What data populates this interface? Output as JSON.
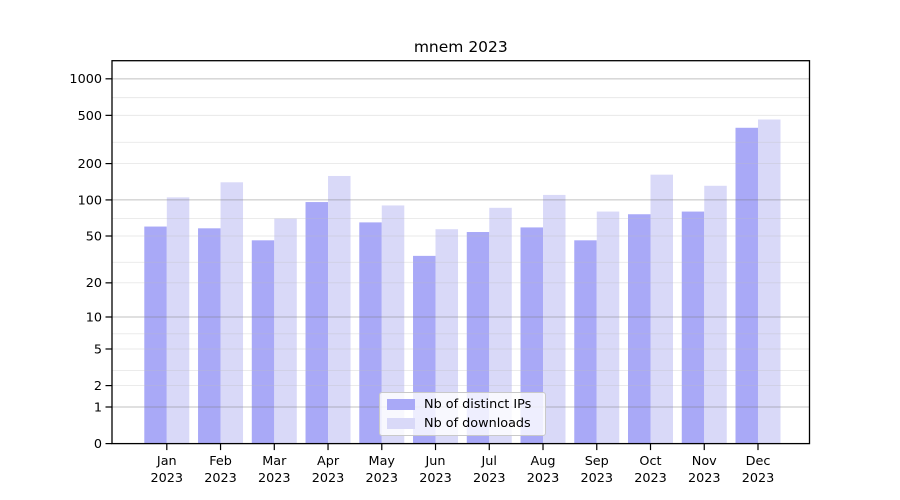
{
  "title": "mnem 2023",
  "chart_data": {
    "type": "bar",
    "title": "mnem 2023",
    "xlabel": "",
    "ylabel": "",
    "yscale": "log1p (symlog-like; linear 0-1, logarithmic above)",
    "ylim": [
      0,
      1400
    ],
    "grid": true,
    "legend_position": "lower center",
    "categories": [
      "Jan 2023",
      "Feb 2023",
      "Mar 2023",
      "Apr 2023",
      "May 2023",
      "Jun 2023",
      "Jul 2023",
      "Aug 2023",
      "Sep 2023",
      "Oct 2023",
      "Nov 2023",
      "Dec 2023"
    ],
    "series": [
      {
        "name": "Nb of distinct IPs",
        "key": "distinct-ips",
        "color": "#a9a9f7",
        "values": [
          60,
          58,
          46,
          96,
          65,
          34,
          54,
          59,
          46,
          76,
          80,
          395
        ]
      },
      {
        "name": "Nb of downloads",
        "key": "downloads",
        "color": "#d9d9f8",
        "values": [
          105,
          140,
          70,
          158,
          90,
          57,
          86,
          110,
          80,
          162,
          131,
          462
        ]
      }
    ],
    "yticks": [
      0,
      1,
      2,
      5,
      10,
      20,
      50,
      100,
      200,
      500,
      1000
    ],
    "major_gridlines": [
      1,
      10,
      100,
      1000
    ],
    "minor_gridlines": [
      2,
      3,
      5,
      7,
      20,
      30,
      50,
      70,
      200,
      300,
      500,
      700
    ],
    "major_grid_color": "rgba(120,120,120,0.45)",
    "minor_grid_color": "rgba(190,190,190,0.35)",
    "axis_color": "#000000",
    "text_color": "#000000"
  }
}
